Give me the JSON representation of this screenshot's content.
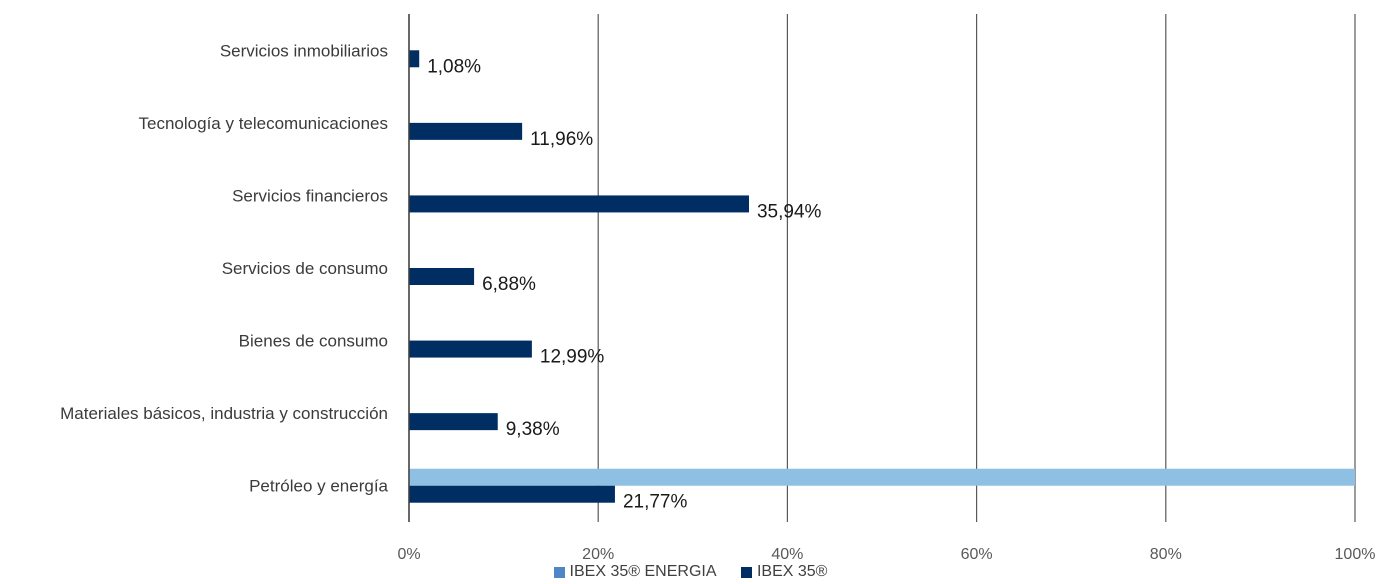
{
  "chart_data": {
    "type": "bar",
    "orientation": "horizontal",
    "categories": [
      "Servicios inmobiliarios",
      "Tecnología y telecomunicaciones",
      "Servicios financieros",
      "Servicios de consumo",
      "Bienes de consumo",
      "Materiales básicos, industria y construcción",
      "Petróleo y energía"
    ],
    "series": [
      {
        "name": "IBEX 35® ENERGIA",
        "color": "#8dc0e3",
        "values": [
          0,
          0,
          0,
          0,
          0,
          0,
          100
        ],
        "labels": [
          "",
          "",
          "",
          "",
          "",
          "",
          ""
        ]
      },
      {
        "name": "IBEX 35®",
        "color": "#002e62",
        "values": [
          1.08,
          11.96,
          35.94,
          6.88,
          12.99,
          9.38,
          21.77
        ],
        "labels": [
          "1,08%",
          "11,96%",
          "35,94%",
          "6,88%",
          "12,99%",
          "9,38%",
          "21,77%"
        ]
      }
    ],
    "xlim": [
      0,
      100
    ],
    "xticks": [
      0,
      20,
      40,
      60,
      80,
      100
    ],
    "xtick_labels": [
      "0%",
      "20%",
      "40%",
      "60%",
      "80%",
      "100%"
    ],
    "grid": "vertical",
    "legend_position": "bottom",
    "title": "",
    "xlabel": "",
    "ylabel": ""
  }
}
